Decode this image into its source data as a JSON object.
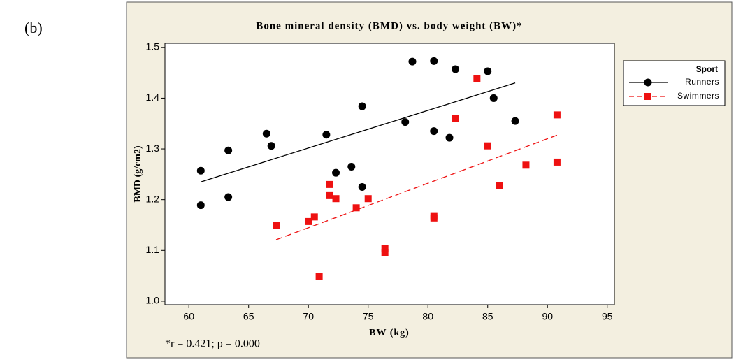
{
  "panel_label": "(b)",
  "chart_data": {
    "type": "scatter",
    "title": "Bone mineral density (BMD) vs. body weight (BW)*",
    "x_label": "BW (kg)",
    "y_label": "BMD (g/cm2)",
    "footnote": "*r = 0.421; p = 0.000",
    "legend_title": "Sport",
    "legend_position": "right",
    "xlim": [
      58,
      95.6
    ],
    "ylim": [
      0.993,
      1.508
    ],
    "xticks": [
      60,
      65,
      70,
      75,
      80,
      85,
      90,
      95
    ],
    "yticks": [
      {
        "value": 1.0,
        "label": "1.0"
      },
      1.1,
      1.2,
      1.3,
      1.4,
      {
        "value": 1.5,
        "label": "1.5"
      }
    ],
    "series": [
      {
        "name": "Runners",
        "color": "#000000",
        "marker": "circle",
        "line_style": "solid",
        "x": [
          61.0,
          61.0,
          63.3,
          63.3,
          66.5,
          66.9,
          71.5,
          72.3,
          73.6,
          74.5,
          74.5,
          78.1,
          78.7,
          80.5,
          80.5,
          81.8,
          82.3,
          85.0,
          85.5,
          87.3
        ],
        "values": [
          1.257,
          1.189,
          1.297,
          1.205,
          1.33,
          1.306,
          1.328,
          1.253,
          1.265,
          1.384,
          1.225,
          1.353,
          1.472,
          1.473,
          1.335,
          1.322,
          1.457,
          1.453,
          1.4,
          1.355
        ],
        "fit": {
          "x": [
            61.0,
            87.3
          ],
          "values": [
            1.235,
            1.43
          ]
        }
      },
      {
        "name": "Swimmers",
        "color": "#ee1111",
        "marker": "square",
        "line_style": "dashed",
        "x": [
          67.3,
          70.0,
          70.5,
          70.9,
          71.8,
          71.8,
          72.3,
          74.0,
          75.0,
          76.4,
          76.4,
          80.5,
          80.5,
          82.3,
          84.1,
          85.0,
          86.0,
          88.2,
          90.8,
          90.8
        ],
        "values": [
          1.149,
          1.157,
          1.166,
          1.049,
          1.23,
          1.208,
          1.202,
          1.184,
          1.202,
          1.104,
          1.096,
          1.167,
          1.164,
          1.36,
          1.438,
          1.306,
          1.228,
          1.268,
          1.367,
          1.274
        ],
        "fit": {
          "x": [
            67.3,
            90.8
          ],
          "values": [
            1.121,
            1.327
          ]
        }
      }
    ]
  }
}
